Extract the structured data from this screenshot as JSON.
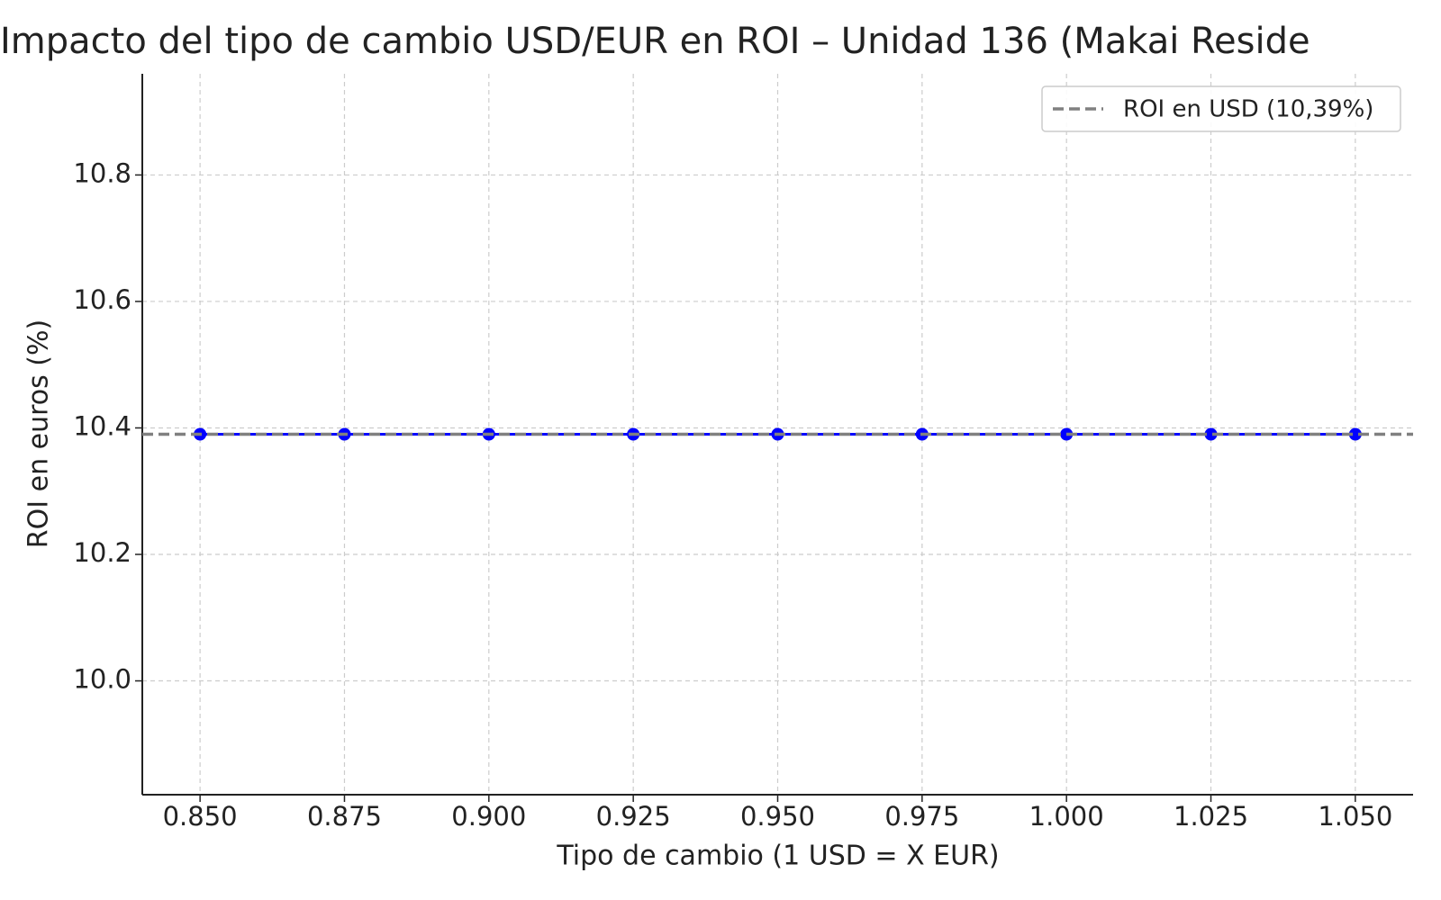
{
  "chart_data": {
    "type": "line",
    "title": "Impacto del tipo de cambio USD/EUR en ROI – Unidad 136 (Makai Reside",
    "x_label": "Tipo de cambio (1 USD = X EUR)",
    "y_label": "ROI en euros (%)",
    "x": [
      0.85,
      0.875,
      0.9,
      0.925,
      0.95,
      0.975,
      1.0,
      1.025,
      1.05
    ],
    "series": [
      {
        "color": "#0000ff",
        "values": [
          10.39,
          10.39,
          10.39,
          10.39,
          10.39,
          10.39,
          10.39,
          10.39,
          10.39
        ]
      }
    ],
    "reference_line": {
      "value": 10.39,
      "label": "ROI en USD (10,39%)",
      "color": "#808080"
    },
    "xlim": [
      0.84,
      1.06
    ],
    "xticks": [
      {
        "value": 0.85,
        "label": "0.850"
      },
      {
        "value": 0.875,
        "label": "0.875"
      },
      {
        "value": 0.9,
        "label": "0.900"
      },
      {
        "value": 0.925,
        "label": "0.925"
      },
      {
        "value": 0.95,
        "label": "0.950"
      },
      {
        "value": 0.975,
        "label": "0.975"
      },
      {
        "value": 1.0,
        "label": "1.000"
      },
      {
        "value": 1.025,
        "label": "1.025"
      },
      {
        "value": 1.05,
        "label": "1.050"
      }
    ],
    "ylim": [
      9.82,
      10.96
    ],
    "yticks": [
      {
        "value": 10,
        "label": "10.0"
      },
      10.2,
      10.4,
      10.6,
      10.8
    ],
    "grid": true,
    "legend": "upper right"
  }
}
